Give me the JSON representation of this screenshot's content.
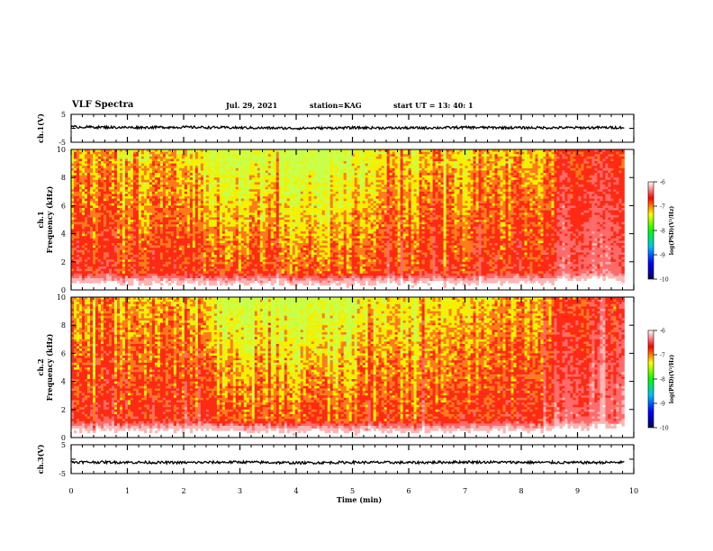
{
  "header": {
    "title": "VLF Spectra",
    "date": "Jul. 29, 2021",
    "station": "station=KAG",
    "start": "start UT = 13: 40: 1"
  },
  "colorbar": {
    "label": "log(PSD)(V²/Hz)",
    "ticks": [
      "-6",
      "-7",
      "-8",
      "-9",
      "-10"
    ],
    "colors": [
      "#000060",
      "#0000ff",
      "#00c0ff",
      "#00ff00",
      "#ffff00",
      "#ff0000",
      "#ffffff"
    ]
  },
  "chart_data": [
    {
      "type": "line",
      "panel": "waveform",
      "ylabel": "ch.1(V)",
      "yticks": [
        "5",
        "-5"
      ],
      "ylim": [
        -5,
        5
      ],
      "xlim": [
        0,
        10
      ],
      "x": [
        0,
        1,
        2,
        3,
        4,
        5,
        6,
        7,
        8,
        9,
        9.83
      ],
      "values": [
        0.5,
        0.3,
        0.4,
        0.2,
        0.0,
        0.2,
        0.1,
        0.3,
        0.2,
        0.2,
        0.3
      ],
      "color": "#000000"
    },
    {
      "type": "heatmap",
      "panel": "spectrogram",
      "ylabel": "ch.1\nFrequency (kHz)",
      "yticks": [
        "10",
        "8",
        "6",
        "4",
        "2",
        "0"
      ],
      "ylim": [
        0,
        10
      ],
      "xlim": [
        0,
        10
      ],
      "x_end": 9.83,
      "zlabel": "log(PSD)(V²/Hz)",
      "zlim": [
        -10,
        -6
      ]
    },
    {
      "type": "heatmap",
      "panel": "spectrogram",
      "ylabel": "ch.2\nFrequency (kHz)",
      "yticks": [
        "10",
        "8",
        "6",
        "4",
        "2",
        "0"
      ],
      "ylim": [
        0,
        10
      ],
      "xlim": [
        0,
        10
      ],
      "x_end": 9.83,
      "zlabel": "log(PSD)(V²/Hz)",
      "zlim": [
        -10,
        -6
      ]
    },
    {
      "type": "line",
      "panel": "waveform",
      "ylabel": "ch.3(V)",
      "yticks": [
        "5",
        "-5"
      ],
      "ylim": [
        -5,
        5
      ],
      "xlim": [
        0,
        10
      ],
      "xlabel": "Time (min)",
      "xticks": [
        "0",
        "1",
        "2",
        "3",
        "4",
        "5",
        "6",
        "7",
        "8",
        "9",
        "10"
      ],
      "x": [
        0,
        1,
        2,
        3,
        4,
        5,
        6,
        7,
        8,
        9,
        9.83
      ],
      "values": [
        -1.0,
        -1.1,
        -1.2,
        -1.0,
        -1.3,
        -1.1,
        -1.2,
        -1.0,
        -1.1,
        -1.2,
        -1.1
      ],
      "color": "#000000"
    }
  ]
}
